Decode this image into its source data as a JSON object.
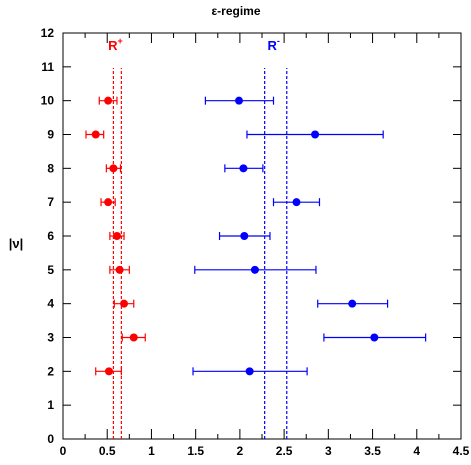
{
  "chart_data": {
    "type": "scatter",
    "title": "ε-regime",
    "xlabel": "",
    "ylabel": "|ν|",
    "xlim": [
      0,
      4.5
    ],
    "ylim": [
      0,
      12
    ],
    "x_ticks": [
      0,
      0.5,
      1,
      1.5,
      2,
      2.5,
      3,
      3.5,
      4,
      4.5
    ],
    "y_ticks": [
      0,
      1,
      2,
      3,
      4,
      5,
      6,
      7,
      8,
      9,
      10,
      11,
      12
    ],
    "grid": false,
    "series": [
      {
        "name": "R+",
        "label_main": "R",
        "label_sup": "+",
        "color": "#ff0000",
        "points": [
          {
            "nu": 2,
            "x": 0.52,
            "xmin": 0.37,
            "xmax": 0.66
          },
          {
            "nu": 3,
            "x": 0.8,
            "xmin": 0.67,
            "xmax": 0.93
          },
          {
            "nu": 4,
            "x": 0.69,
            "xmin": 0.58,
            "xmax": 0.8
          },
          {
            "nu": 5,
            "x": 0.64,
            "xmin": 0.53,
            "xmax": 0.75
          },
          {
            "nu": 6,
            "x": 0.61,
            "xmin": 0.53,
            "xmax": 0.69
          },
          {
            "nu": 7,
            "x": 0.51,
            "xmin": 0.43,
            "xmax": 0.59
          },
          {
            "nu": 8,
            "x": 0.57,
            "xmin": 0.49,
            "xmax": 0.65
          },
          {
            "nu": 9,
            "x": 0.37,
            "xmin": 0.26,
            "xmax": 0.46
          },
          {
            "nu": 10,
            "x": 0.51,
            "xmin": 0.41,
            "xmax": 0.61
          }
        ],
        "band": [
          0.57,
          0.66
        ]
      },
      {
        "name": "R-",
        "label_main": "R",
        "label_sup": "-",
        "color": "#0000ff",
        "points": [
          {
            "nu": 2,
            "x": 2.11,
            "xmin": 1.47,
            "xmax": 2.76
          },
          {
            "nu": 3,
            "x": 3.52,
            "xmin": 2.95,
            "xmax": 4.1
          },
          {
            "nu": 4,
            "x": 3.27,
            "xmin": 2.88,
            "xmax": 3.67
          },
          {
            "nu": 5,
            "x": 2.17,
            "xmin": 1.49,
            "xmax": 2.86
          },
          {
            "nu": 6,
            "x": 2.05,
            "xmin": 1.77,
            "xmax": 2.34
          },
          {
            "nu": 7,
            "x": 2.64,
            "xmin": 2.38,
            "xmax": 2.9
          },
          {
            "nu": 8,
            "x": 2.04,
            "xmin": 1.83,
            "xmax": 2.26
          },
          {
            "nu": 9,
            "x": 2.85,
            "xmin": 2.08,
            "xmax": 3.62
          },
          {
            "nu": 10,
            "x": 1.99,
            "xmin": 1.61,
            "xmax": 2.38
          }
        ],
        "band": [
          2.28,
          2.53
        ]
      }
    ]
  }
}
